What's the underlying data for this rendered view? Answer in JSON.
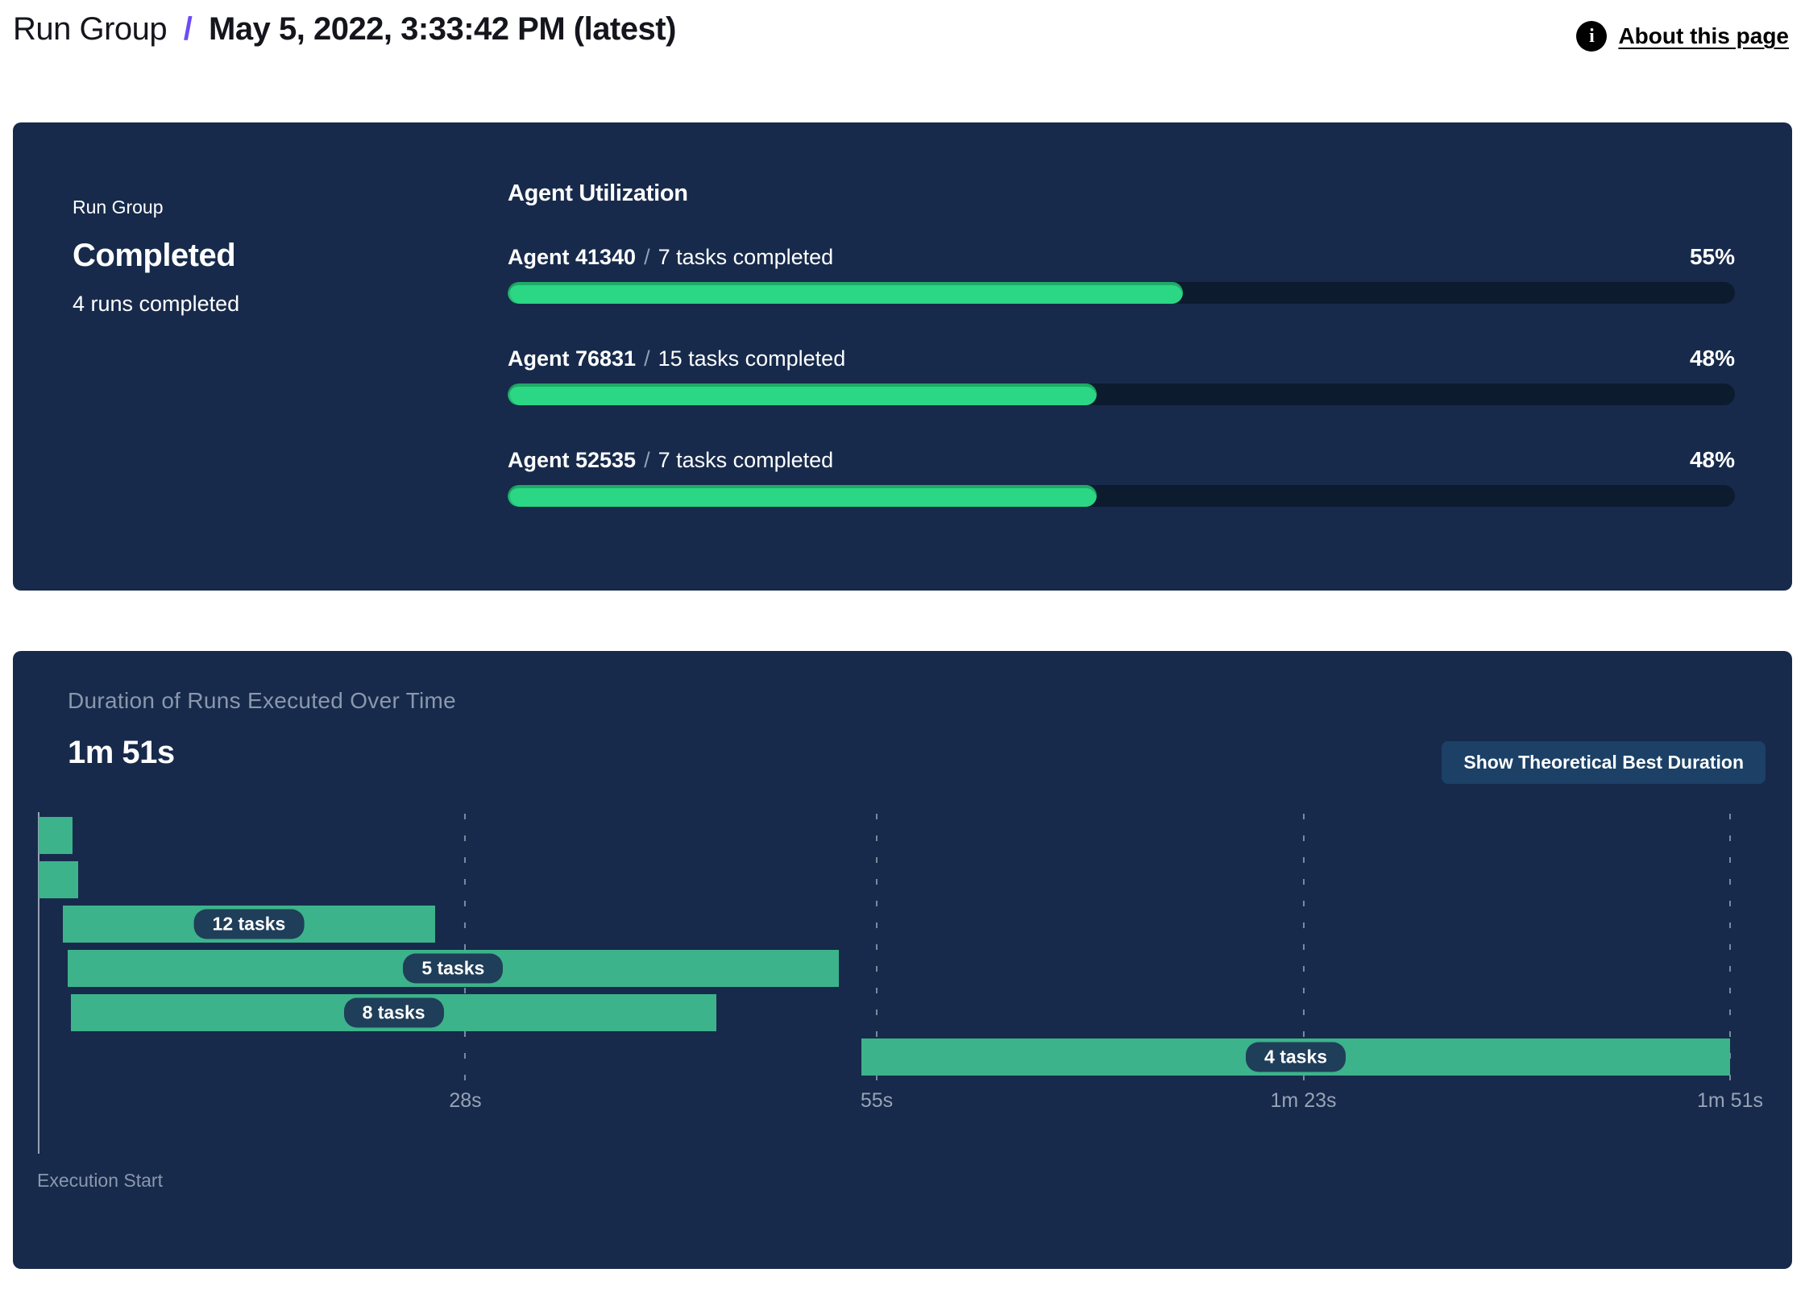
{
  "header": {
    "breadcrumb_root": "Run Group",
    "breadcrumb_separator": "/",
    "breadcrumb_current": "May 5, 2022, 3:33:42 PM (latest)",
    "about_link_label": "About this page",
    "info_icon_glyph": "i"
  },
  "run_group_panel": {
    "label": "Run Group",
    "status": "Completed",
    "runs_completed": "4 runs completed",
    "utilization": {
      "title": "Agent Utilization",
      "agents": [
        {
          "name": "Agent 41340",
          "separator": "/",
          "tasks": "7 tasks completed",
          "percent": "55%",
          "value": 55
        },
        {
          "name": "Agent 76831",
          "separator": "/",
          "tasks": "15 tasks completed",
          "percent": "48%",
          "value": 48
        },
        {
          "name": "Agent 52535",
          "separator": "/",
          "tasks": "7 tasks completed",
          "percent": "48%",
          "value": 48
        }
      ]
    }
  },
  "duration_panel": {
    "title": "Duration of Runs Executed Over Time",
    "total_duration": "1m 51s",
    "button_label": "Show Theoretical Best Duration"
  },
  "chart_data": {
    "type": "gantt",
    "title": "Duration of Runs Executed Over Time",
    "total_duration_s": 111,
    "xlabel": "Execution Start",
    "x_ticks": [
      {
        "label": "28s",
        "s": 28
      },
      {
        "label": "55s",
        "s": 55
      },
      {
        "label": "1m 23s",
        "s": 83
      },
      {
        "label": "1m 51s",
        "s": 111
      }
    ],
    "runs": [
      {
        "label": "",
        "start_s": 0,
        "end_s": 2.2
      },
      {
        "label": "",
        "start_s": 0,
        "end_s": 2.6
      },
      {
        "label": "12 tasks",
        "start_s": 1.6,
        "end_s": 26
      },
      {
        "label": "5 tasks",
        "start_s": 1.9,
        "end_s": 52.5
      },
      {
        "label": "8 tasks",
        "start_s": 2.1,
        "end_s": 44.5
      },
      {
        "label": "4 tasks",
        "start_s": 54,
        "end_s": 111
      }
    ],
    "colors": {
      "panel_bg": "#172a4b",
      "progress_fill": "#2bd784",
      "progress_track": "#0d1b2e",
      "gantt_bar": "#3cb38b",
      "pill_bg": "#1f3e59",
      "muted_text": "#8a98ad",
      "accent_purple": "#6b4cf6",
      "button_bg": "#1c4066"
    }
  }
}
